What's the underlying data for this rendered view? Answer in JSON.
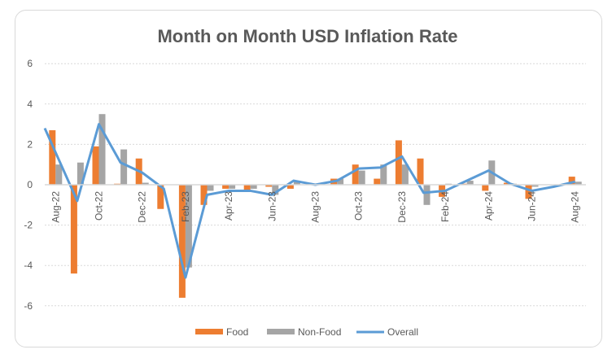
{
  "chart_data": {
    "type": "bar+line",
    "title": "Month on Month USD Inflation Rate",
    "categories": [
      "Aug-22",
      "Sep-22",
      "Oct-22",
      "Nov-22",
      "Dec-22",
      "Jan-23",
      "Feb-23",
      "Mar-23",
      "Apr-23",
      "May-23",
      "Jun-23",
      "Jul-23",
      "Aug-23",
      "Sep-23",
      "Oct-23",
      "Nov-23",
      "Dec-23",
      "Jan-24",
      "Feb-24",
      "Mar-24",
      "Apr-24",
      "May-24",
      "Jun-24",
      "Jul-24",
      "Aug-24"
    ],
    "tick_labels_shown": [
      "Aug-22",
      "Oct-22",
      "Dec-22",
      "Feb-23",
      "Apr-23",
      "Jun-23",
      "Aug-23",
      "Oct-23",
      "Dec-23",
      "Feb-24",
      "Apr-24",
      "Jun-24",
      "Aug-24"
    ],
    "series": [
      {
        "name": "Food",
        "type": "bar",
        "color": "#ed7d31",
        "values": [
          2.7,
          -4.4,
          1.9,
          0.05,
          1.3,
          -1.2,
          -5.6,
          -1.0,
          -0.2,
          -0.3,
          -0.1,
          -0.2,
          0.0,
          0.3,
          1.0,
          0.3,
          2.2,
          1.3,
          -0.6,
          0.05,
          -0.3,
          0.1,
          -0.7,
          0.0,
          0.4
        ]
      },
      {
        "name": "Non-Food",
        "type": "bar",
        "color": "#a5a5a5",
        "values": [
          1.0,
          1.1,
          3.5,
          1.75,
          0.1,
          0.0,
          -4.1,
          -0.3,
          -0.2,
          -0.2,
          -0.5,
          0.2,
          0.05,
          0.3,
          0.7,
          1.0,
          1.0,
          -1.0,
          0.05,
          0.2,
          1.2,
          0.05,
          -0.1,
          0.0,
          0.15
        ]
      },
      {
        "name": "Overall",
        "type": "line",
        "color": "#5b9bd5",
        "values": [
          2.8,
          -0.8,
          3.0,
          1.1,
          0.6,
          -0.2,
          -4.6,
          -0.5,
          -0.3,
          -0.3,
          -0.5,
          0.2,
          0.0,
          0.2,
          0.8,
          0.85,
          1.4,
          -0.4,
          -0.3,
          0.2,
          0.7,
          0.05,
          -0.3,
          -0.1,
          0.15
        ]
      }
    ],
    "yticks": [
      "6",
      "4",
      "2",
      "0",
      "-2",
      "-4",
      "-6"
    ],
    "ylim": [
      -7,
      7
    ],
    "grid": true,
    "legend": "bottom"
  }
}
